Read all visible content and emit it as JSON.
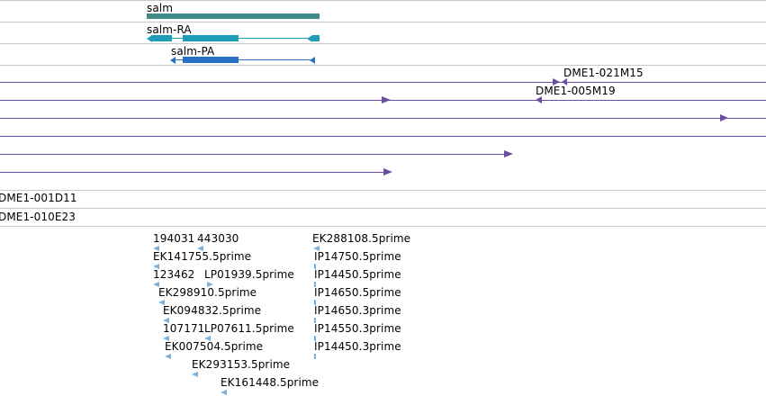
{
  "gene": {
    "name": "salm",
    "transcripts": [
      "salm-RA",
      "salm-PA"
    ]
  },
  "clones": {
    "labels": [
      "DME1-021M15",
      "DME1-005M19",
      "DME1-001D11",
      "DME1-010E23"
    ]
  },
  "ests": {
    "labels": [
      "194031",
      "443030",
      "EK288108.5prime",
      "EK141755.5prime",
      "IP14750.5prime",
      "123462",
      "LP01939.5prime",
      "IP14450.5prime",
      "EK298910.5prime",
      "IP14650.5prime",
      "EK094832.5prime",
      "IP14650.3prime",
      "107171",
      "LP07611.5prime",
      "IP14550.3prime",
      "EK007504.5prime",
      "IP14450.3prime",
      "EK293153.5prime",
      "EK161448.5prime"
    ]
  },
  "colors": {
    "gene": "#3e8a86",
    "transcript_ra": "#1f9db8",
    "transcript_pa": "#2a6fc7",
    "clone": "#6a4ea0",
    "est": "#7fb0d8",
    "separator": "#c8c8c8"
  }
}
